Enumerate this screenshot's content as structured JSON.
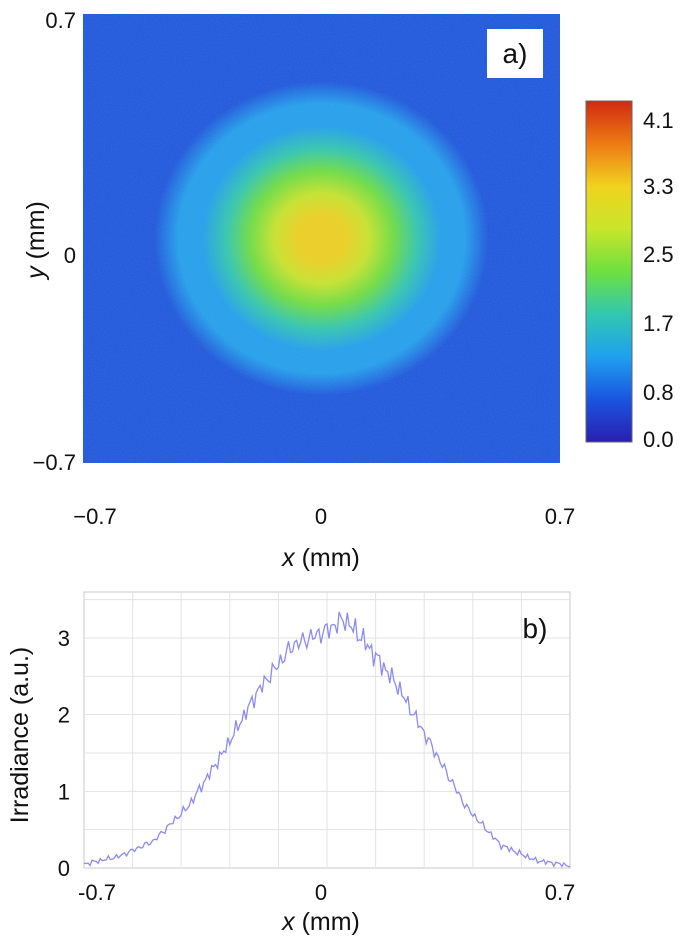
{
  "chart_data": [
    {
      "type": "heatmap",
      "panel_label": "a)",
      "xlabel_var": "x",
      "xlabel_unit": " (mm)",
      "ylabel_var": "y",
      "ylabel_unit": " (mm)",
      "xlim": [
        -0.7,
        0.7
      ],
      "ylim": [
        -0.7,
        0.7
      ],
      "x_ticks": [
        "−0.7",
        "0",
        "0.7"
      ],
      "y_ticks": [
        "0.7",
        "0",
        "−0.7"
      ],
      "colorbar": {
        "range": [
          0.0,
          4.1
        ],
        "ticks": [
          "4.1",
          "3.3",
          "2.5",
          "1.7",
          "0.8",
          "0.0"
        ],
        "colormap": [
          "#2a1fb0",
          "#1a55e0",
          "#1fa0f0",
          "#30c8b0",
          "#6ee040",
          "#c8e62a",
          "#f0d21e",
          "#ee7a14",
          "#d02a10"
        ]
      },
      "description_values": {
        "peak": 3.3,
        "peak_location": [
          0,
          0
        ],
        "beam_radius_mm": 0.3,
        "background": 0.3
      }
    },
    {
      "type": "line",
      "panel_label": "b)",
      "xlabel_var": "x",
      "xlabel_unit": " (mm)",
      "ylabel": "Irradiance (a.u.)",
      "xlim": [
        -0.7,
        0.7
      ],
      "ylim": [
        0,
        3.6
      ],
      "x_ticks": [
        "-0.7",
        "0",
        "0.7"
      ],
      "y_ticks": [
        0,
        1,
        2,
        3
      ],
      "grid": true,
      "line_color": "#8c8cf0",
      "x": [
        -0.7,
        -0.6,
        -0.5,
        -0.4,
        -0.3,
        -0.2,
        -0.1,
        0,
        0.05,
        0.1,
        0.2,
        0.3,
        0.4,
        0.5,
        0.6,
        0.7
      ],
      "y": [
        0.05,
        0.15,
        0.35,
        0.8,
        1.5,
        2.3,
        2.9,
        3.1,
        3.25,
        3.0,
        2.4,
        1.6,
        0.8,
        0.3,
        0.1,
        0.03
      ]
    }
  ]
}
